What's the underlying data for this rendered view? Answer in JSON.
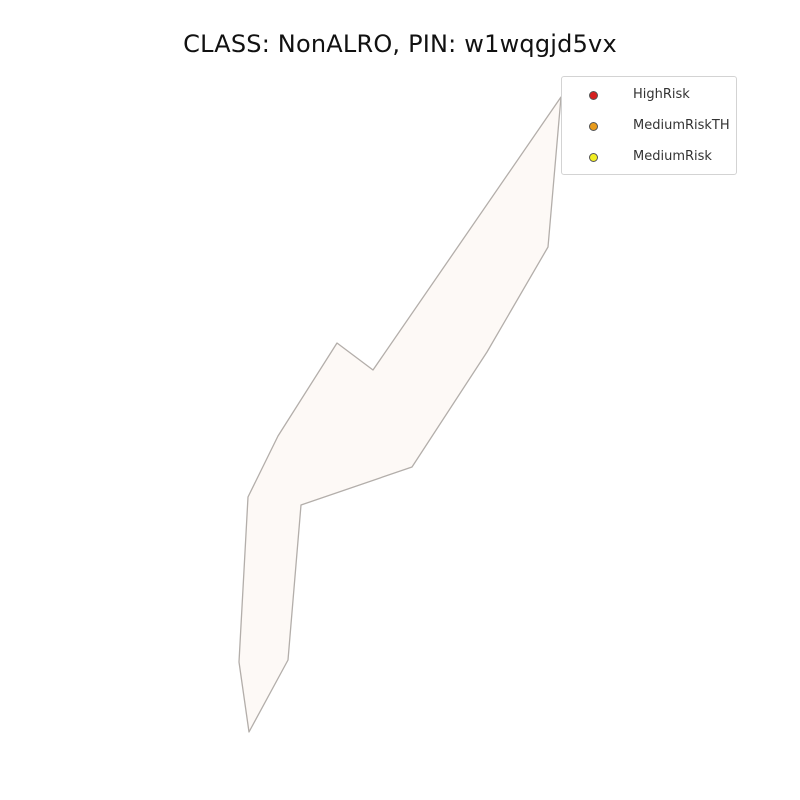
{
  "map": {
    "title": "CLASS: NonALRO, PIN: w1wqgjd5vx",
    "parcel": {
      "fill": "#fdf9f6",
      "stroke": "#b3aeaa"
    }
  },
  "legend": {
    "items": [
      {
        "label": "HighRisk",
        "color": "#d62020"
      },
      {
        "label": "MediumRiskTH",
        "color": "#e89b1c"
      },
      {
        "label": "MediumRisk",
        "color": "#f2ee22"
      }
    ]
  }
}
